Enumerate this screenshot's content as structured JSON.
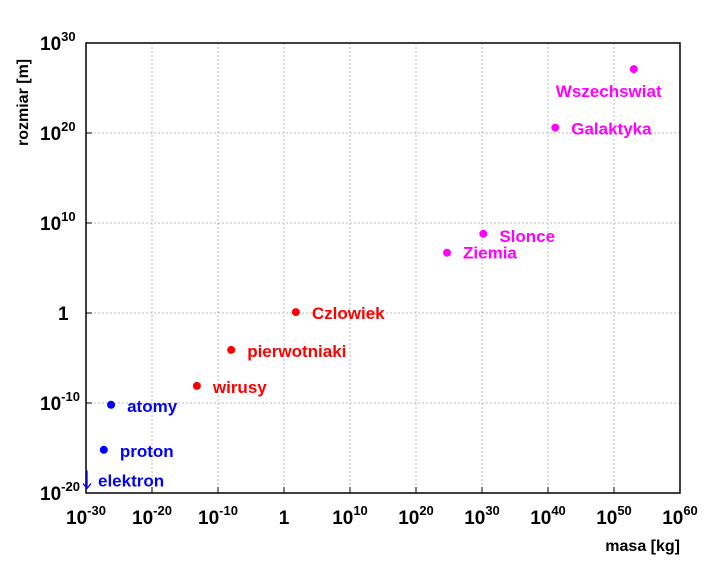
{
  "chart_data": {
    "type": "scatter",
    "title": "",
    "xlabel": "masa [kg]",
    "ylabel": "rozmiar [m]",
    "xscale": "log",
    "yscale": "log",
    "xlim": [
      1e-30,
      1e+60
    ],
    "ylim": [
      1e-20,
      1e+30
    ],
    "grid": true,
    "x_ticks": [
      {
        "exp": -30,
        "base": "10",
        "sup": "-30"
      },
      {
        "exp": -20,
        "base": "10",
        "sup": "-20"
      },
      {
        "exp": -10,
        "base": "10",
        "sup": "-10"
      },
      {
        "exp": 0,
        "base": "1",
        "sup": ""
      },
      {
        "exp": 10,
        "base": "10",
        "sup": "10"
      },
      {
        "exp": 20,
        "base": "10",
        "sup": "20"
      },
      {
        "exp": 30,
        "base": "10",
        "sup": "30"
      },
      {
        "exp": 40,
        "base": "10",
        "sup": "40"
      },
      {
        "exp": 50,
        "base": "10",
        "sup": "50"
      },
      {
        "exp": 60,
        "base": "10",
        "sup": "60"
      }
    ],
    "y_ticks": [
      {
        "exp": -20,
        "base": "10",
        "sup": "-20"
      },
      {
        "exp": -10,
        "base": "10",
        "sup": "-10"
      },
      {
        "exp": 0,
        "base": "1",
        "sup": ""
      },
      {
        "exp": 10,
        "base": "10",
        "sup": "10"
      },
      {
        "exp": 20,
        "base": "10",
        "sup": "20"
      },
      {
        "exp": 30,
        "base": "10",
        "sup": "30"
      }
    ],
    "points": [
      {
        "label": "elektron",
        "x": 1e-30,
        "y": 3.1623e-18,
        "marker": "upper-limit-arrow",
        "color": "#0000ff"
      },
      {
        "label": "proton",
        "x": 5.0119e-28,
        "y": 6.3096e-16,
        "marker": "dot",
        "color": "#0000ff"
      },
      {
        "label": "atomy",
        "x": 6.3096e-27,
        "y": 6.3096e-11,
        "marker": "dot",
        "color": "#0000ff"
      },
      {
        "label": "wirusy",
        "x": 6.3096e-14,
        "y": 7.9433e-09,
        "marker": "dot",
        "color": "#ff0000"
      },
      {
        "label": "pierwotniaki",
        "x": 1e-08,
        "y": 7.9433e-05,
        "marker": "dot",
        "color": "#ff0000"
      },
      {
        "label": "Czlowiek",
        "x": 63.096,
        "y": 1.2589,
        "marker": "dot",
        "color": "#ff0000"
      },
      {
        "label": "Ziemia",
        "x": 5.0119e+24,
        "y": 5011900.0,
        "marker": "dot",
        "color": "#ff00ff"
      },
      {
        "label": "Slonce",
        "x": 1.5849e+30,
        "y": 630960000.0,
        "marker": "dot",
        "color": "#ff00ff"
      },
      {
        "label": "Galaktyka",
        "x": 1.2589e+41,
        "y": 3.9811e+20,
        "marker": "dot",
        "color": "#ff00ff"
      },
      {
        "label": "Wszechswiat",
        "x": 1e+53,
        "y": 1.2589e+27,
        "marker": "dot",
        "color": "#ff00ff"
      }
    ]
  }
}
